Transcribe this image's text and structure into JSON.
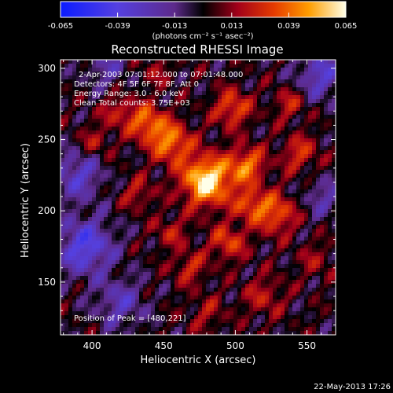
{
  "chart_data": {
    "type": "heatmap",
    "title": "Reconstructed RHESSI Image",
    "xlabel": "Heliocentric X (arcsec)",
    "ylabel": "Heliocentric Y (arcsec)",
    "xlim": [
      378,
      570
    ],
    "ylim": [
      113,
      306
    ],
    "xticks": [
      400,
      450,
      500,
      550
    ],
    "yticks": [
      150,
      200,
      250,
      300
    ],
    "annotations": {
      "time": "2-Apr-2003 07:01:12.000 to 07:01:48.000",
      "detectors": "Detectors: 4F 5F 6F 7F 8F, Att 0",
      "energy": "Energy Range: 3.0 - 6.0 keV",
      "clean": "Clean    Total counts: 3.75E+03",
      "peak": "Position of Peak = [480,221]"
    },
    "peak": [
      480,
      221
    ],
    "colorbar": {
      "min": -0.065,
      "max": 0.065,
      "ticks": [
        "-0.065",
        "-0.039",
        "-0.013",
        "0.013",
        "0.039",
        "0.065"
      ],
      "unit_label": "(photons cm⁻² s⁻¹ asec⁻²)"
    },
    "sources": [
      {
        "x": 480,
        "y": 221,
        "amp": 0.065,
        "w": 12
      },
      {
        "x": 455,
        "y": 248,
        "amp": 0.042,
        "w": 10
      },
      {
        "x": 438,
        "y": 262,
        "amp": 0.038,
        "w": 9
      },
      {
        "x": 508,
        "y": 232,
        "amp": 0.04,
        "w": 9
      },
      {
        "x": 498,
        "y": 272,
        "amp": 0.034,
        "w": 9
      },
      {
        "x": 528,
        "y": 198,
        "amp": 0.036,
        "w": 10
      },
      {
        "x": 510,
        "y": 205,
        "amp": 0.03,
        "w": 8
      },
      {
        "x": 495,
        "y": 178,
        "amp": 0.03,
        "w": 9
      },
      {
        "x": 468,
        "y": 160,
        "amp": 0.024,
        "w": 8
      },
      {
        "x": 455,
        "y": 185,
        "amp": 0.02,
        "w": 8
      },
      {
        "x": 545,
        "y": 240,
        "amp": 0.026,
        "w": 9
      },
      {
        "x": 538,
        "y": 275,
        "amp": 0.022,
        "w": 8
      },
      {
        "x": 418,
        "y": 270,
        "amp": 0.022,
        "w": 8
      },
      {
        "x": 402,
        "y": 248,
        "amp": 0.018,
        "w": 8
      },
      {
        "x": 432,
        "y": 212,
        "amp": 0.02,
        "w": 8
      },
      {
        "x": 520,
        "y": 140,
        "amp": 0.02,
        "w": 10
      },
      {
        "x": 556,
        "y": 165,
        "amp": 0.014,
        "w": 9
      },
      {
        "x": 480,
        "y": 128,
        "amp": 0.016,
        "w": 9
      },
      {
        "x": 445,
        "y": 298,
        "amp": 0.014,
        "w": 8
      },
      {
        "x": 395,
        "y": 175,
        "amp": -0.04,
        "w": 14
      },
      {
        "x": 390,
        "y": 225,
        "amp": -0.03,
        "w": 12
      },
      {
        "x": 420,
        "y": 135,
        "amp": -0.025,
        "w": 12
      },
      {
        "x": 560,
        "y": 295,
        "amp": -0.03,
        "w": 12
      },
      {
        "x": 562,
        "y": 210,
        "amp": -0.02,
        "w": 10
      },
      {
        "x": 410,
        "y": 300,
        "amp": -0.02,
        "w": 10
      }
    ],
    "footer_date": "22-May-2013 17:26"
  }
}
